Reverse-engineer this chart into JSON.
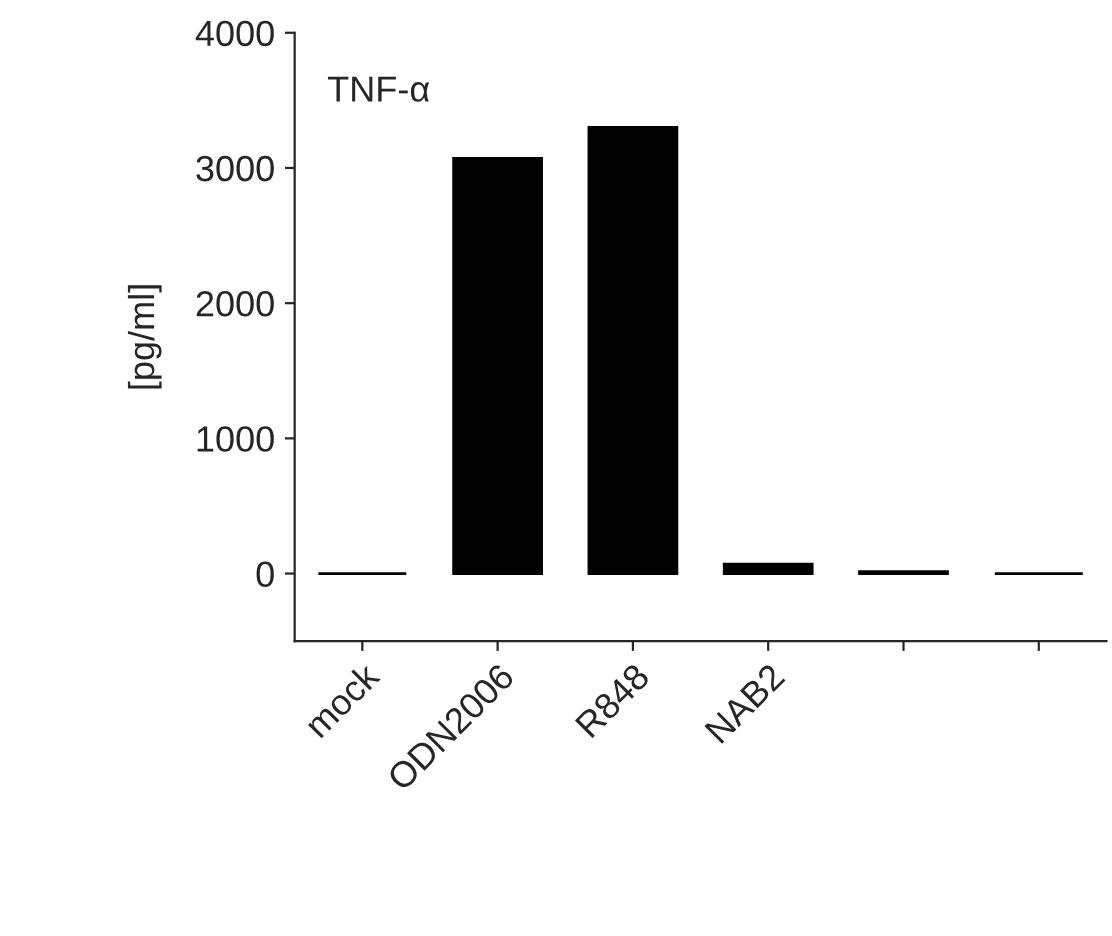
{
  "chart_data": {
    "type": "bar",
    "categories": [
      "mock",
      "ODN2006",
      "R848",
      "NAB2",
      null,
      null
    ],
    "values": [
      0,
      3070,
      3300,
      70,
      15,
      0
    ],
    "color": "#000000",
    "ylabel": "[pg/ml]",
    "annotations": [
      "TNF-α"
    ],
    "ylim": [
      -500,
      4000
    ],
    "yticks": [
      0,
      1000,
      2000,
      3000,
      4000
    ],
    "grid": false
  }
}
